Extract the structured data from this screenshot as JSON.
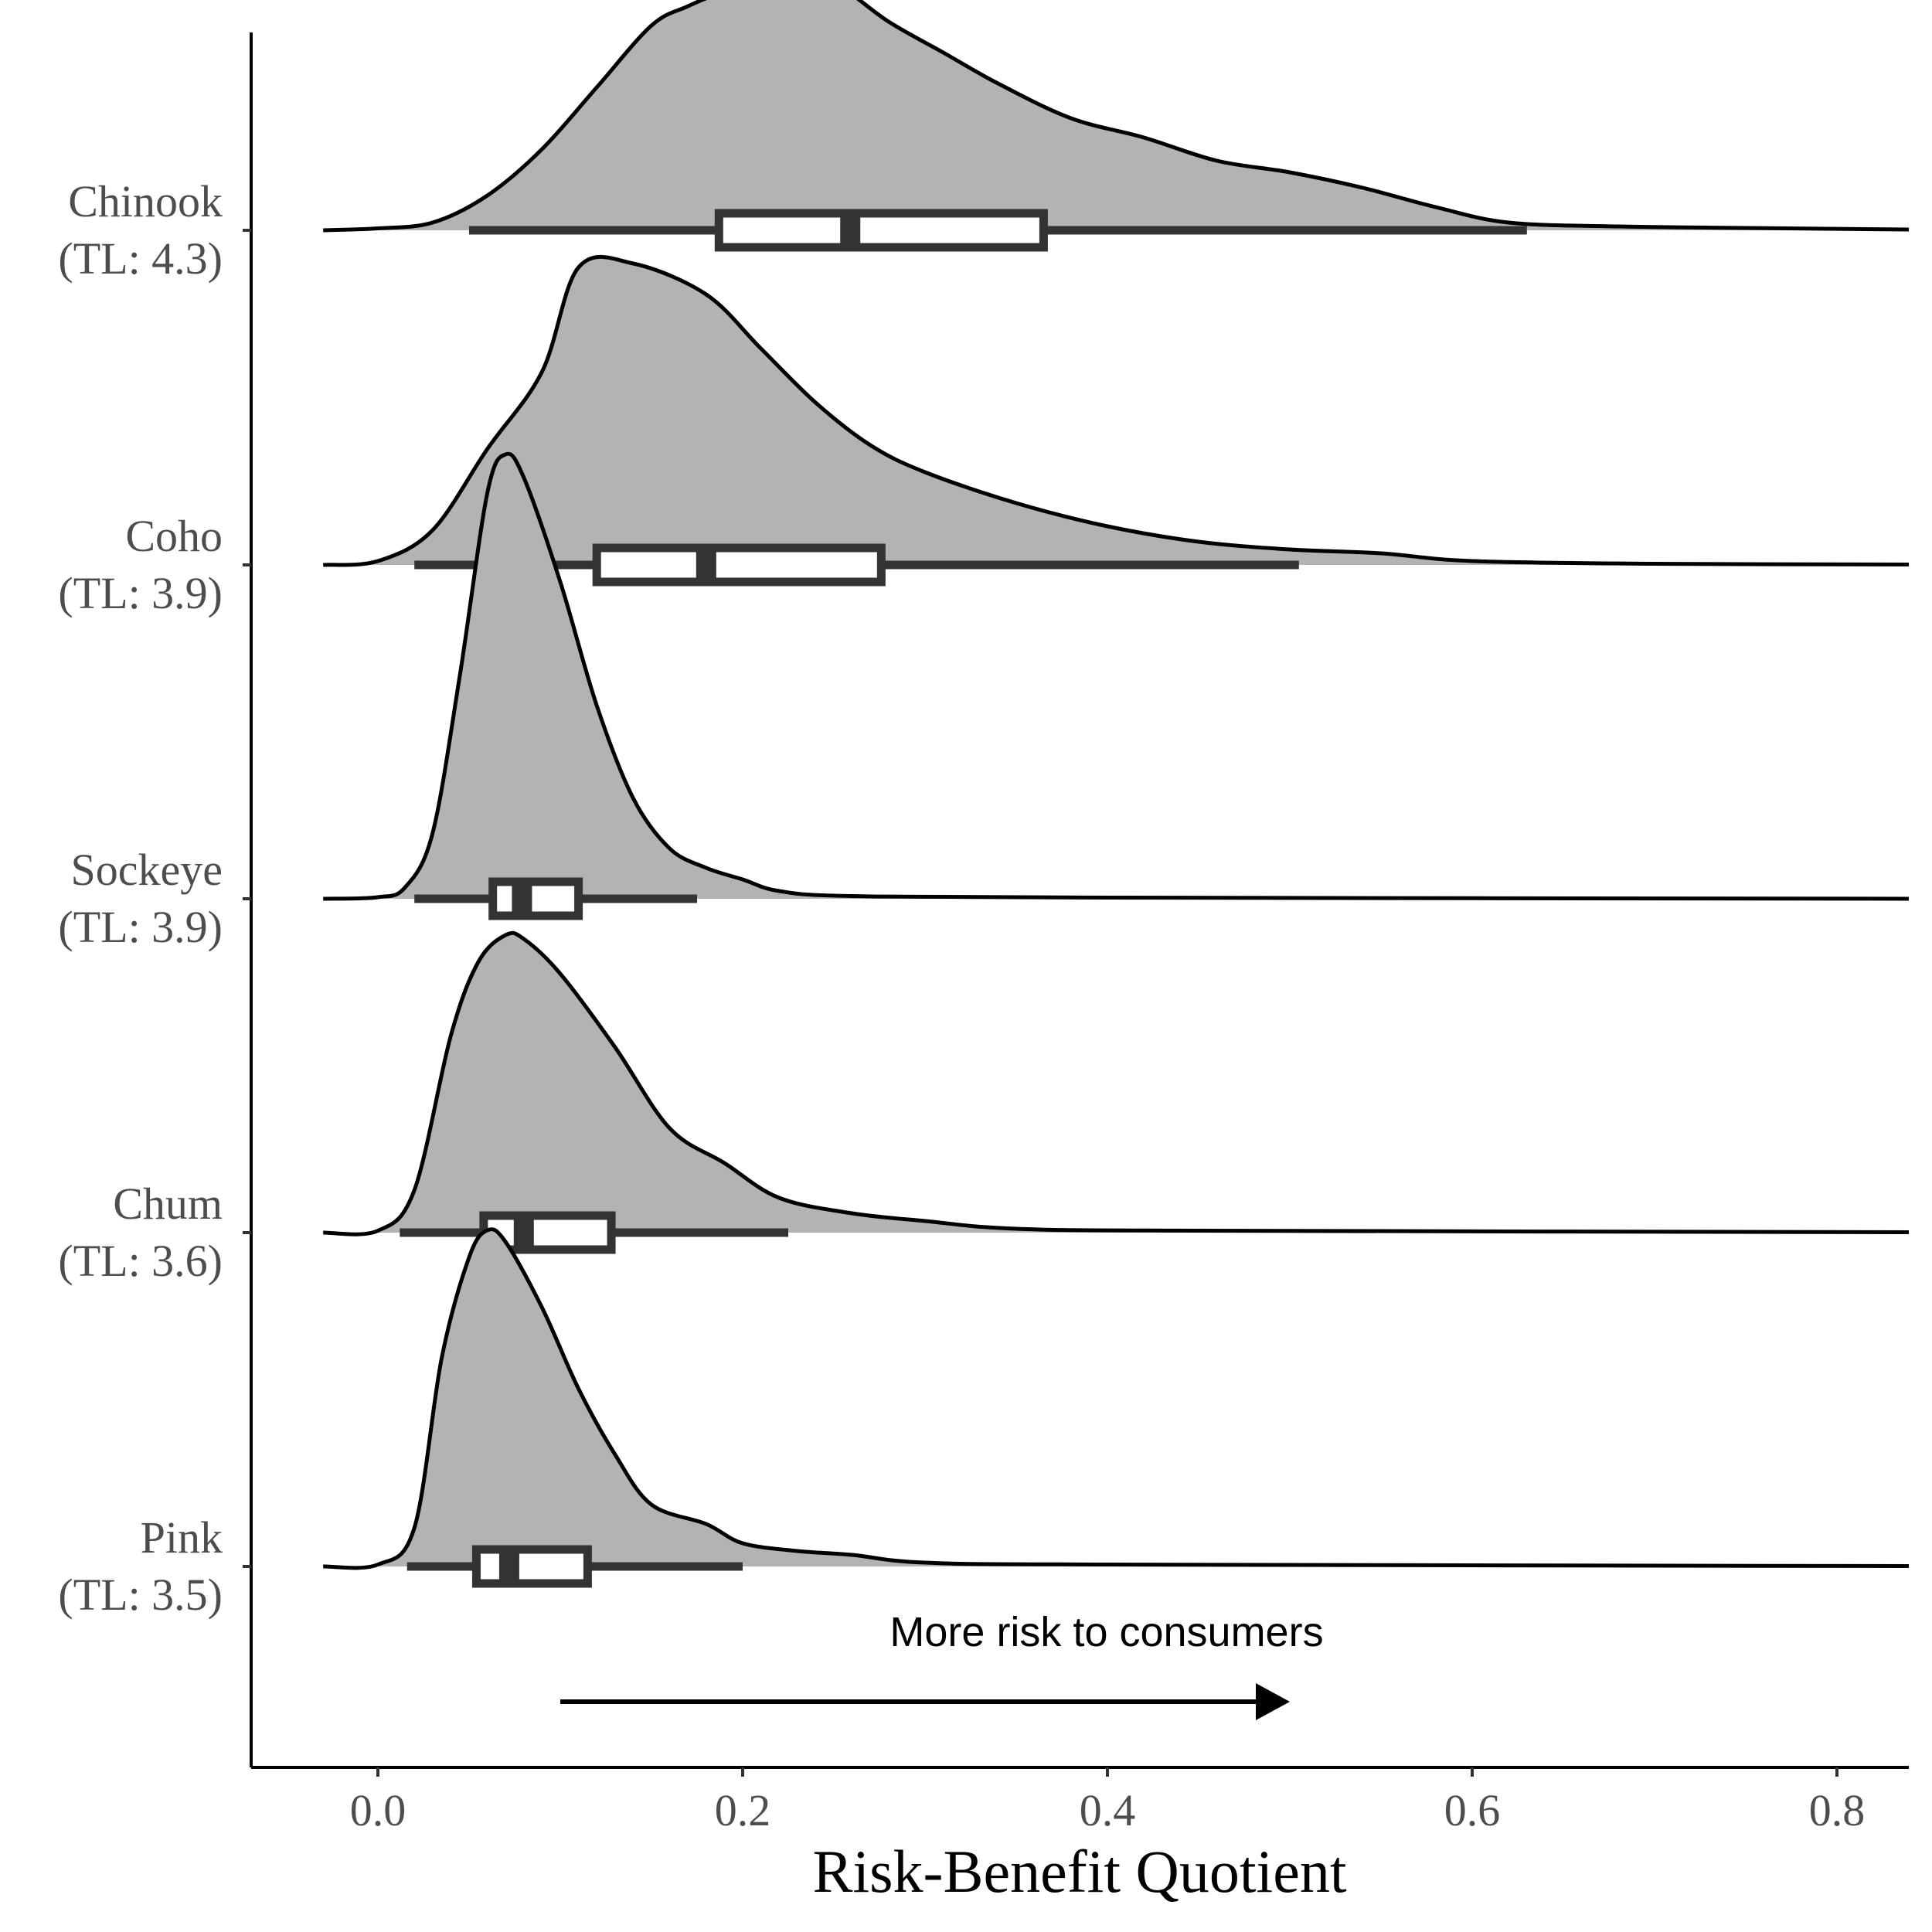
{
  "chart_data": {
    "type": "ridgeline",
    "xlabel": "Risk-Benefit Quotient",
    "ylabel": "",
    "xlim": [
      -0.07,
      0.84
    ],
    "x_ticks": [
      {
        "value": 0.0,
        "label": "0.0"
      },
      {
        "value": 0.2,
        "label": "0.2"
      },
      {
        "value": 0.4,
        "label": "0.4"
      },
      {
        "value": 0.6,
        "label": "0.6"
      },
      {
        "value": 0.8,
        "label": "0.8"
      }
    ],
    "categories": [
      {
        "name": "Chinook",
        "tl": "(TL: 4.3)"
      },
      {
        "name": "Coho",
        "tl": "(TL: 3.9)"
      },
      {
        "name": "Sockeye",
        "tl": "(TL: 3.9)"
      },
      {
        "name": "Chum",
        "tl": "(TL: 3.6)"
      },
      {
        "name": "Pink",
        "tl": "(TL: 3.5)"
      }
    ],
    "annotation": {
      "text": "More risk to consumers",
      "arrow_from": 0.1,
      "arrow_to": 0.5
    },
    "colors": {
      "density_fill": "#b3b3b3",
      "density_line": "#000000",
      "box_line": "#333333",
      "box_fill": "#ffffff"
    },
    "series": [
      {
        "name": "Chinook",
        "density": [
          [
            -0.03,
            0
          ],
          [
            0.0,
            0.005
          ],
          [
            0.03,
            0.02
          ],
          [
            0.06,
            0.09
          ],
          [
            0.09,
            0.21
          ],
          [
            0.12,
            0.37
          ],
          [
            0.15,
            0.53
          ],
          [
            0.17,
            0.58
          ],
          [
            0.19,
            0.62
          ],
          [
            0.22,
            0.68
          ],
          [
            0.25,
            0.64
          ],
          [
            0.28,
            0.54
          ],
          [
            0.31,
            0.46
          ],
          [
            0.34,
            0.38
          ],
          [
            0.38,
            0.29
          ],
          [
            0.42,
            0.24
          ],
          [
            0.46,
            0.18
          ],
          [
            0.5,
            0.15
          ],
          [
            0.54,
            0.11
          ],
          [
            0.58,
            0.06
          ],
          [
            0.62,
            0.02
          ],
          [
            0.68,
            0.01
          ],
          [
            0.75,
            0.006
          ],
          [
            0.84,
            0.002
          ]
        ],
        "box": {
          "whisker_low": 0.05,
          "q1": 0.187,
          "median": 0.259,
          "q3": 0.365,
          "whisker_high": 0.63
        }
      },
      {
        "name": "Coho",
        "density": [
          [
            -0.03,
            0
          ],
          [
            0.0,
            0.01
          ],
          [
            0.03,
            0.09
          ],
          [
            0.06,
            0.3
          ],
          [
            0.09,
            0.5
          ],
          [
            0.11,
            0.77
          ],
          [
            0.14,
            0.78
          ],
          [
            0.18,
            0.7
          ],
          [
            0.21,
            0.56
          ],
          [
            0.24,
            0.42
          ],
          [
            0.27,
            0.31
          ],
          [
            0.3,
            0.24
          ],
          [
            0.35,
            0.16
          ],
          [
            0.4,
            0.1
          ],
          [
            0.45,
            0.06
          ],
          [
            0.5,
            0.04
          ],
          [
            0.55,
            0.03
          ],
          [
            0.6,
            0.01
          ],
          [
            0.7,
            0.003
          ],
          [
            0.84,
            0.001
          ]
        ],
        "box": {
          "whisker_low": 0.02,
          "q1": 0.12,
          "median": 0.18,
          "q3": 0.276,
          "whisker_high": 0.505
        }
      },
      {
        "name": "Sockeye",
        "density": [
          [
            -0.03,
            0
          ],
          [
            0.0,
            0.004
          ],
          [
            0.015,
            0.03
          ],
          [
            0.03,
            0.17
          ],
          [
            0.045,
            0.58
          ],
          [
            0.06,
            1.05
          ],
          [
            0.07,
            1.15
          ],
          [
            0.08,
            1.09
          ],
          [
            0.1,
            0.82
          ],
          [
            0.12,
            0.5
          ],
          [
            0.14,
            0.26
          ],
          [
            0.16,
            0.13
          ],
          [
            0.18,
            0.08
          ],
          [
            0.2,
            0.05
          ],
          [
            0.22,
            0.02
          ],
          [
            0.26,
            0.007
          ],
          [
            0.4,
            0.003
          ],
          [
            0.84,
            0.0
          ]
        ],
        "box": {
          "whisker_low": 0.02,
          "q1": 0.063,
          "median": 0.079,
          "q3": 0.11,
          "whisker_high": 0.175
        }
      },
      {
        "name": "Chum",
        "density": [
          [
            -0.03,
            0
          ],
          [
            0.0,
            0.005
          ],
          [
            0.02,
            0.11
          ],
          [
            0.04,
            0.51
          ],
          [
            0.055,
            0.7
          ],
          [
            0.07,
            0.77
          ],
          [
            0.08,
            0.76
          ],
          [
            0.1,
            0.67
          ],
          [
            0.13,
            0.48
          ],
          [
            0.16,
            0.27
          ],
          [
            0.19,
            0.18
          ],
          [
            0.22,
            0.09
          ],
          [
            0.26,
            0.05
          ],
          [
            0.3,
            0.03
          ],
          [
            0.35,
            0.01
          ],
          [
            0.45,
            0.005
          ],
          [
            0.84,
            0.001
          ]
        ],
        "box": {
          "whisker_low": 0.012,
          "q1": 0.058,
          "median": 0.08,
          "q3": 0.128,
          "whisker_high": 0.225
        }
      },
      {
        "name": "Pink",
        "density": [
          [
            -0.03,
            0
          ],
          [
            0.0,
            0.005
          ],
          [
            0.02,
            0.1
          ],
          [
            0.035,
            0.54
          ],
          [
            0.05,
            0.8
          ],
          [
            0.06,
            0.87
          ],
          [
            0.07,
            0.84
          ],
          [
            0.09,
            0.67
          ],
          [
            0.11,
            0.46
          ],
          [
            0.13,
            0.29
          ],
          [
            0.15,
            0.16
          ],
          [
            0.18,
            0.11
          ],
          [
            0.2,
            0.06
          ],
          [
            0.23,
            0.04
          ],
          [
            0.26,
            0.03
          ],
          [
            0.3,
            0.01
          ],
          [
            0.4,
            0.005
          ],
          [
            0.84,
            0.001
          ]
        ],
        "box": {
          "whisker_low": 0.016,
          "q1": 0.054,
          "median": 0.072,
          "q3": 0.115,
          "whisker_high": 0.2
        }
      }
    ]
  }
}
